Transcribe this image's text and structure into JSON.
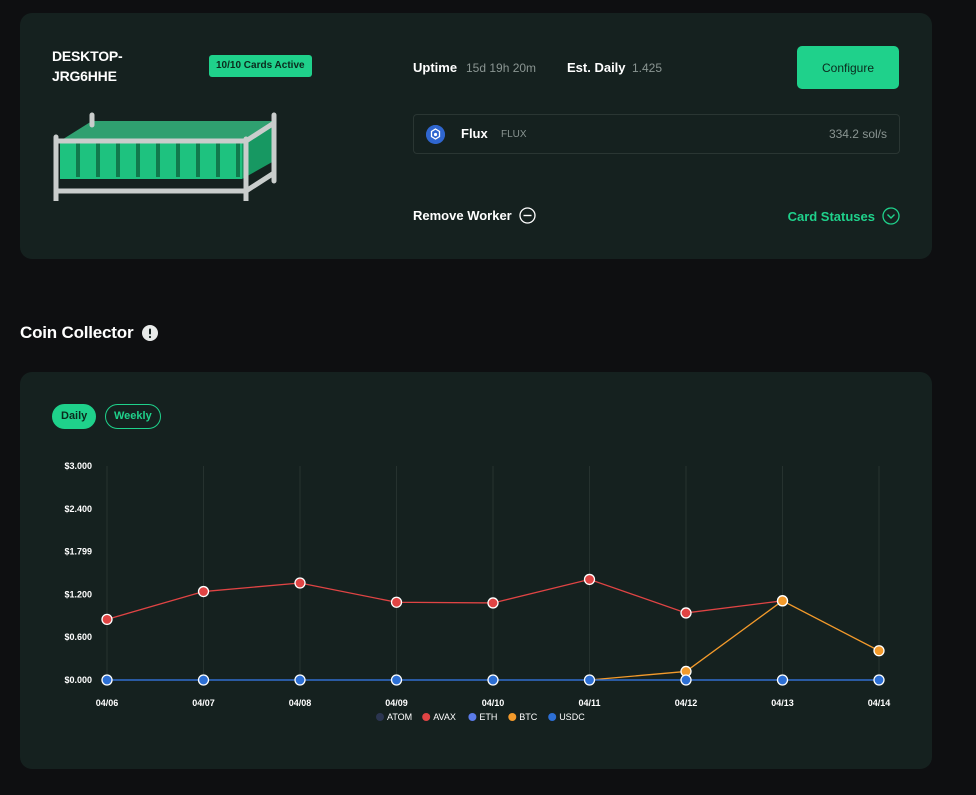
{
  "worker": {
    "name": "DESKTOP-JRG6HHE",
    "cards_badge": "10/10 Cards Active",
    "uptime_label": "Uptime",
    "uptime_value": "15d 19h 20m",
    "est_label": "Est. Daily",
    "est_value": "1.425",
    "configure_label": "Configure",
    "coin": {
      "name": "Flux",
      "ticker": "FLUX",
      "rate": "334.2 sol/s"
    },
    "remove_label": "Remove Worker",
    "statuses_label": "Card Statuses"
  },
  "coin_collector": {
    "title": "Coin Collector",
    "tabs": [
      {
        "label": "Daily",
        "active": true
      },
      {
        "label": "Weekly",
        "active": false
      }
    ]
  },
  "colors": {
    "accent": "#1fd18b",
    "card": "#15211f",
    "background": "#0e0f11"
  },
  "chart_data": {
    "type": "line",
    "x": [
      "04/06",
      "04/07",
      "04/08",
      "04/09",
      "04/10",
      "04/11",
      "04/12",
      "04/13",
      "04/14"
    ],
    "y_ticks": [
      "$3.000",
      "$2.400",
      "$1.799",
      "$1.200",
      "$0.600",
      "$0.000"
    ],
    "ylim": [
      0,
      3
    ],
    "grid": "vertical",
    "legend_position": "bottom",
    "series": [
      {
        "name": "ATOM",
        "color": "#2b3550",
        "values": [
          null,
          null,
          null,
          null,
          null,
          null,
          null,
          null,
          null
        ]
      },
      {
        "name": "AVAX",
        "color": "#e04444",
        "values": [
          0.85,
          1.24,
          1.36,
          1.09,
          1.08,
          1.41,
          0.94,
          1.11,
          null
        ]
      },
      {
        "name": "ETH",
        "color": "#5b7be8",
        "values": [
          0,
          0,
          0,
          0,
          0,
          0,
          0,
          0,
          0
        ]
      },
      {
        "name": "BTC",
        "color": "#f39a2b",
        "values": [
          null,
          null,
          null,
          null,
          null,
          0,
          0.12,
          1.11,
          0.41
        ]
      },
      {
        "name": "USDC",
        "color": "#2d6fd4",
        "values": [
          0,
          0,
          0,
          0,
          0,
          0,
          0,
          0,
          0
        ]
      }
    ]
  }
}
